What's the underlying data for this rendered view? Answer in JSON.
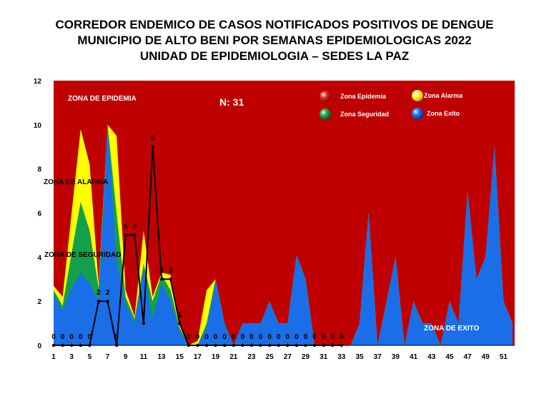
{
  "chart_data": {
    "type": "area",
    "title_lines": [
      "CORREDOR ENDEMICO DE CASOS NOTIFICADOS POSITIVOS DE DENGUE",
      "MUNICIPIO DE ALTO BENI POR SEMANAS EPIDEMIOLOGICAS 2022",
      "UNIDAD DE EPIDEMIOLOGIA – SEDES LA PAZ"
    ],
    "ylim": [
      0,
      12
    ],
    "y_ticks": [
      "0",
      "2",
      "4",
      "6",
      "8",
      "10",
      "12"
    ],
    "x_tick_labels": [
      "1",
      "3",
      "5",
      "7",
      "9",
      "11",
      "13",
      "15",
      "17",
      "19",
      "21",
      "23",
      "25",
      "27",
      "29",
      "31",
      "33",
      "35",
      "37",
      "39",
      "41",
      "43",
      "45",
      "47",
      "49",
      "51"
    ],
    "weeks": [
      1,
      2,
      3,
      4,
      5,
      6,
      7,
      8,
      9,
      10,
      11,
      12,
      13,
      14,
      15,
      16,
      17,
      18,
      19,
      20,
      21,
      22,
      23,
      24,
      25,
      26,
      27,
      28,
      29,
      30,
      31,
      32,
      33,
      34,
      35,
      36,
      37,
      38,
      39,
      40,
      41,
      42,
      43,
      44,
      45,
      46,
      47,
      48,
      49,
      50,
      51,
      52
    ],
    "zone_exito": [
      2.3,
      1.6,
      2.6,
      3.3,
      2.8,
      2.0,
      10,
      3.9,
      1.9,
      1.0,
      3.5,
      1.2,
      2.8,
      2.0,
      0.7,
      0,
      0,
      0.8,
      3.0,
      1.0,
      0,
      1.0,
      1.0,
      1.0,
      2.0,
      1.0,
      1.0,
      4.1,
      3.0,
      0,
      0,
      0,
      0,
      0,
      1.0,
      6.0,
      0,
      2.0,
      4.0,
      0,
      2.0,
      1.0,
      1.0,
      0,
      2.0,
      1.0,
      7.0,
      3.0,
      4.0,
      9.0,
      2.0,
      1.0
    ],
    "zone_seguridad": [
      2.5,
      1.8,
      4.2,
      6.5,
      5.2,
      2.6,
      10,
      6.0,
      2.2,
      1.2,
      3.7,
      2.0,
      3.2,
      2.5,
      0.8,
      0,
      0,
      1.0,
      3.0,
      1.0,
      0,
      1.0,
      1.0,
      1.0,
      2.0,
      1.0,
      1.0,
      4.1,
      3.0,
      0,
      0,
      0,
      0,
      0,
      1.0,
      6.0,
      0,
      2.0,
      4.0,
      0,
      2.0,
      1.0,
      1.0,
      0,
      2.0,
      1.0,
      7.0,
      3.0,
      4.0,
      9.0,
      2.0,
      1.0
    ],
    "zone_alarma": [
      2.7,
      2.2,
      6.0,
      9.8,
      8.2,
      2.8,
      10,
      9.5,
      2.5,
      1.3,
      5.2,
      2.2,
      3.3,
      3.2,
      1.0,
      0,
      0.2,
      2.5,
      3.0,
      1.0,
      0,
      1.0,
      1.0,
      1.0,
      2.0,
      1.0,
      1.0,
      4.1,
      3.0,
      0,
      0,
      0,
      0,
      0,
      1.0,
      6.0,
      0,
      2.0,
      4.0,
      0,
      2.0,
      1.0,
      1.0,
      0,
      2.0,
      1.0,
      7.0,
      3.0,
      4.0,
      9.0,
      2.0,
      1.0
    ],
    "zone_epidemia_max": 12,
    "cases_weeks": [
      1,
      2,
      3,
      4,
      5,
      6,
      7,
      8,
      9,
      10,
      11,
      12,
      13,
      14,
      15,
      16,
      17,
      18,
      19,
      20,
      21,
      22,
      23,
      24,
      25,
      26,
      27,
      28,
      29,
      30,
      31,
      32,
      33
    ],
    "cases": [
      0,
      0,
      0,
      0,
      0,
      2,
      2,
      0,
      5,
      5,
      1,
      9,
      3,
      3,
      1,
      0,
      0,
      0,
      0,
      0,
      0,
      0,
      0,
      0,
      0,
      0,
      0,
      0,
      0,
      0,
      0,
      0,
      0
    ],
    "case_labels": [
      "0",
      "0",
      "0",
      "0",
      "0",
      "2",
      "2",
      "0",
      "5",
      "5",
      "",
      "9",
      "3",
      "3",
      "1",
      "0",
      "0",
      "0",
      "0",
      "0",
      "0",
      "0",
      "0",
      "0",
      "0",
      "0",
      "0",
      "0",
      "0",
      "0",
      "0",
      "0",
      "0"
    ],
    "annotations": {
      "zona_epidemia": "ZONA DE EPIDEMIA",
      "zona_alarma": "ZONA DE ALARMA",
      "zona_seguridad": "ZONA DE  SEGURIDAD",
      "zona_exito": "ZONA DE  EXITO",
      "n_total": "N: 31"
    },
    "legend": [
      {
        "name": "Zona Epidemia",
        "color": "#c00000"
      },
      {
        "name": "Zona Alarma",
        "color": "#ffff00"
      },
      {
        "name": "Zona Seguridad",
        "color": "#00a040"
      },
      {
        "name": "Zona Exito",
        "color": "#0070f0"
      }
    ],
    "colors": {
      "epidemia": "#bf0000",
      "alarma": "#ffff00",
      "seguridad": "#12a04a",
      "exito": "#1a6fe8",
      "cases_line": "#000000"
    }
  }
}
